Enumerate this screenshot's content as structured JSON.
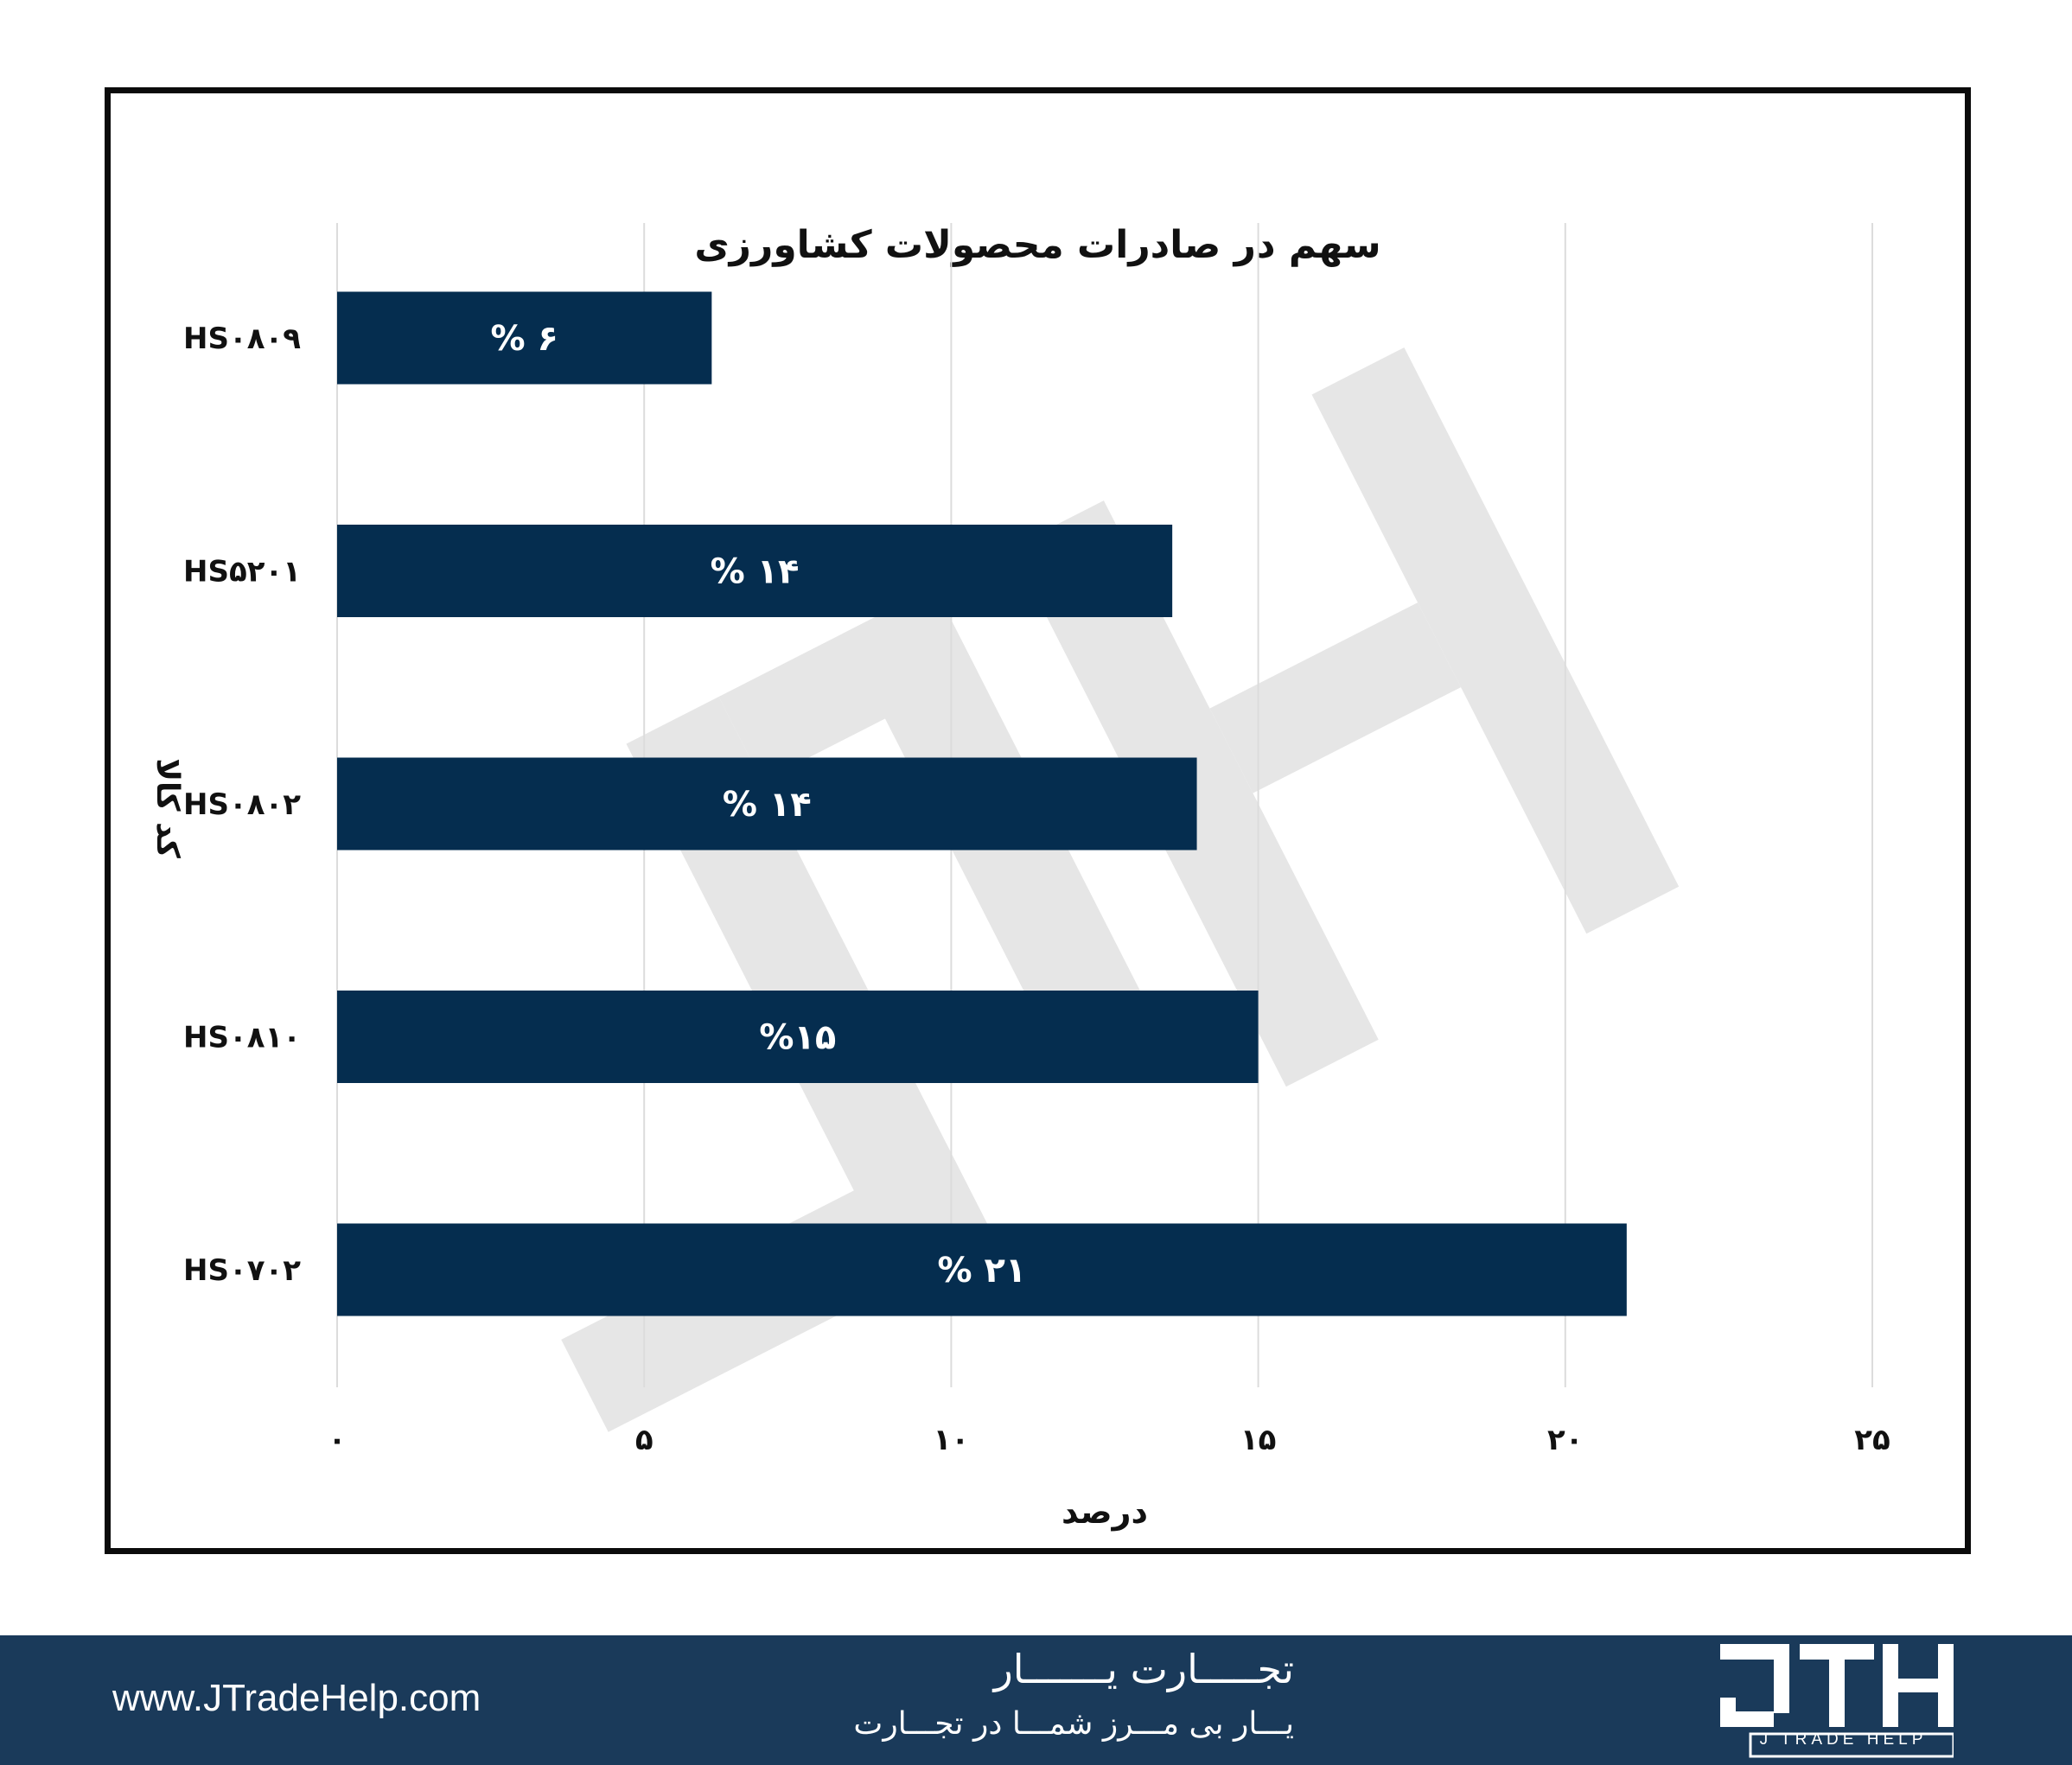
{
  "chart_data": {
    "type": "bar",
    "orientation": "horizontal",
    "title": "سهم در صادرات محصولات کشاورزی",
    "xlabel": "درصد",
    "ylabel": "کد کالا",
    "xlim": [
      0,
      25
    ],
    "x_ticks": [
      0,
      5,
      10,
      15,
      20,
      25
    ],
    "x_tick_labels": [
      "۰",
      "۵",
      "۱۰",
      "۱۵",
      "۲۰",
      "۲۵"
    ],
    "grid": "vertical",
    "bar_color": "#052d4f",
    "categories": [
      "HS۰۸۰۹",
      "HS۵۲۰۱",
      "HS۰۸۰۲",
      "HS۰۸۱۰",
      "HS۰۷۰۲"
    ],
    "values": [
      6.1,
      13.6,
      14,
      15,
      21
    ],
    "data_labels": [
      "% ۶",
      "% ۱۴",
      "% ۱۴",
      "%۱۵",
      "% ۲۱"
    ]
  },
  "watermark": {
    "text": "JTH",
    "color": "#e6e6e6"
  },
  "footer": {
    "background": "#1a3a5a",
    "url": "www.JTradeHelp.com",
    "tagline_main": "تجـــــارت یـــــــار",
    "tagline_sub": "یـــار بی مـــرز شمـــا در تجـــارت",
    "logo_text": "J TRADE HELP"
  }
}
